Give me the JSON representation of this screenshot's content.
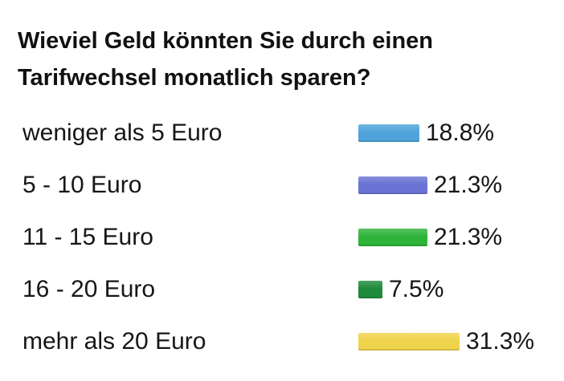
{
  "poll": {
    "question": "Wieviel Geld könnten Sie durch einen Tarifwechsel monatlich sparen?",
    "options": [
      {
        "label": "weniger als 5 Euro",
        "percent_label": "18.8%",
        "color": "#4fa3da"
      },
      {
        "label": "5 - 10 Euro",
        "percent_label": "21.3%",
        "color": "#6a73d3"
      },
      {
        "label": "11 - 15 Euro",
        "percent_label": "21.3%",
        "color": "#2fb43a"
      },
      {
        "label": "16 - 20 Euro",
        "percent_label": "7.5%",
        "color": "#1f8a3c"
      },
      {
        "label": "mehr als 20 Euro",
        "percent_label": "31.3%",
        "color": "#efd34a"
      }
    ]
  },
  "chart_data": {
    "type": "bar",
    "orientation": "horizontal",
    "title": "Wieviel Geld könnten Sie durch einen Tarifwechsel monatlich sparen?",
    "categories": [
      "weniger als 5 Euro",
      "5 - 10 Euro",
      "11 - 15 Euro",
      "16 - 20 Euro",
      "mehr als 20 Euro"
    ],
    "values": [
      18.8,
      21.3,
      21.3,
      7.5,
      31.3
    ],
    "unit": "%",
    "grid": false,
    "legend": "none"
  }
}
